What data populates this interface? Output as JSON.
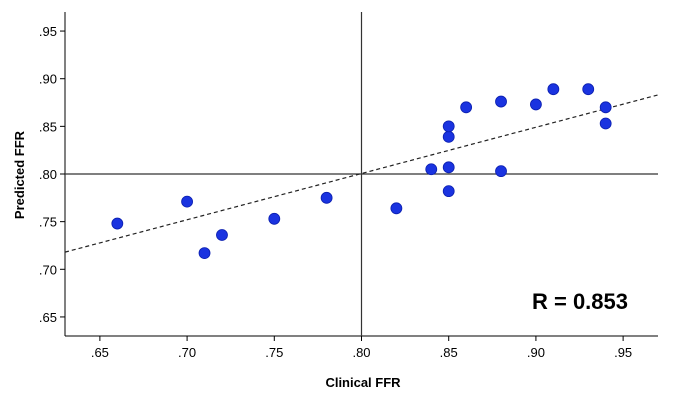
{
  "chart_data": {
    "type": "scatter",
    "xlabel": "Clinical FFR",
    "ylabel": "Predicted FFR",
    "xlim": [
      0.63,
      0.97
    ],
    "ylim": [
      0.63,
      0.97
    ],
    "x_ticks": [
      0.65,
      0.7,
      0.75,
      0.8,
      0.85,
      0.9,
      0.95
    ],
    "x_tick_labels": [
      ".65",
      ".70",
      ".75",
      ".80",
      ".85",
      ".90",
      ".95"
    ],
    "y_ticks": [
      0.65,
      0.7,
      0.75,
      0.8,
      0.85,
      0.9,
      0.95
    ],
    "y_tick_labels": [
      ".65",
      ".70",
      ".75",
      ".80",
      ".85",
      ".90",
      ".95"
    ],
    "reference_lines": {
      "x": 0.8,
      "y": 0.8
    },
    "fit_line": {
      "style": "dashed",
      "x": [
        0.63,
        0.97
      ],
      "y": [
        0.718,
        0.883
      ]
    },
    "annotation": "R = 0.853",
    "grid": false,
    "legend": "none",
    "marker_color": "#1a33e0",
    "points": [
      {
        "x": 0.66,
        "y": 0.748
      },
      {
        "x": 0.7,
        "y": 0.771
      },
      {
        "x": 0.71,
        "y": 0.717
      },
      {
        "x": 0.72,
        "y": 0.736
      },
      {
        "x": 0.75,
        "y": 0.753
      },
      {
        "x": 0.78,
        "y": 0.775
      },
      {
        "x": 0.82,
        "y": 0.764
      },
      {
        "x": 0.84,
        "y": 0.805
      },
      {
        "x": 0.85,
        "y": 0.782
      },
      {
        "x": 0.85,
        "y": 0.807
      },
      {
        "x": 0.85,
        "y": 0.839
      },
      {
        "x": 0.85,
        "y": 0.85
      },
      {
        "x": 0.86,
        "y": 0.87
      },
      {
        "x": 0.88,
        "y": 0.803
      },
      {
        "x": 0.88,
        "y": 0.876
      },
      {
        "x": 0.9,
        "y": 0.873
      },
      {
        "x": 0.91,
        "y": 0.889
      },
      {
        "x": 0.93,
        "y": 0.889
      },
      {
        "x": 0.94,
        "y": 0.87
      },
      {
        "x": 0.94,
        "y": 0.853
      }
    ]
  }
}
